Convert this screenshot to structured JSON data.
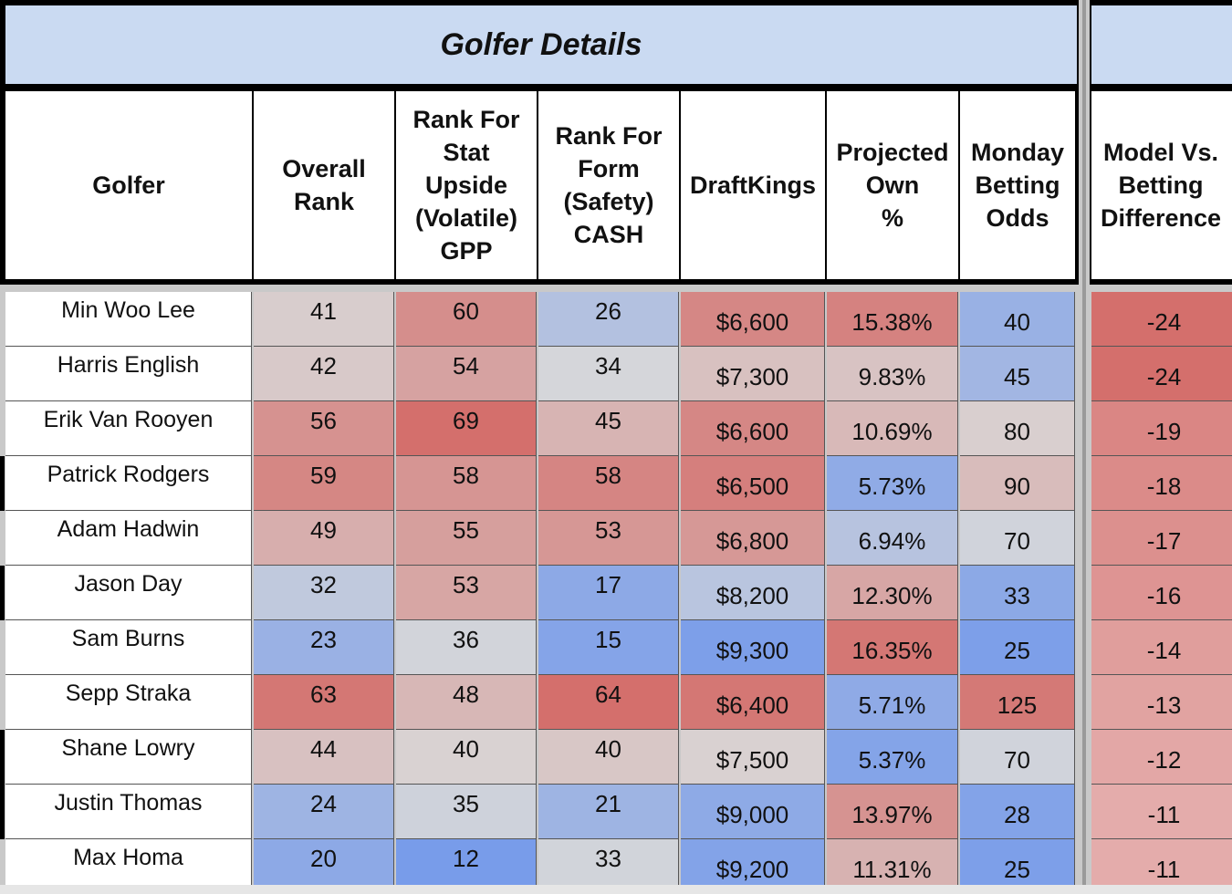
{
  "sheet": {
    "title": "Golfer Details",
    "columns": [
      "Golfer",
      "Overall\nRank",
      "Rank For\nStat\nUpside\n(Volatile)\nGPP",
      "Rank For\nForm\n(Safety)\nCASH",
      "DraftKings",
      "Projected\nOwn\n%",
      "Monday\nBetting\nOdds",
      "Model Vs.\nBetting\nDifference"
    ],
    "rows": [
      {
        "golfer": "Min Woo Lee",
        "overall": "41",
        "stat": "60",
        "form": "26",
        "dk": "$6,600",
        "own": "15.38%",
        "odds": "40",
        "diff": "-24"
      },
      {
        "golfer": "Harris English",
        "overall": "42",
        "stat": "54",
        "form": "34",
        "dk": "$7,300",
        "own": "9.83%",
        "odds": "45",
        "diff": "-24"
      },
      {
        "golfer": "Erik Van Rooyen",
        "overall": "56",
        "stat": "69",
        "form": "45",
        "dk": "$6,600",
        "own": "10.69%",
        "odds": "80",
        "diff": "-19"
      },
      {
        "golfer": "Patrick Rodgers",
        "overall": "59",
        "stat": "58",
        "form": "58",
        "dk": "$6,500",
        "own": "5.73%",
        "odds": "90",
        "diff": "-18"
      },
      {
        "golfer": "Adam Hadwin",
        "overall": "49",
        "stat": "55",
        "form": "53",
        "dk": "$6,800",
        "own": "6.94%",
        "odds": "70",
        "diff": "-17"
      },
      {
        "golfer": "Jason Day",
        "overall": "32",
        "stat": "53",
        "form": "17",
        "dk": "$8,200",
        "own": "12.30%",
        "odds": "33",
        "diff": "-16"
      },
      {
        "golfer": "Sam Burns",
        "overall": "23",
        "stat": "36",
        "form": "15",
        "dk": "$9,300",
        "own": "16.35%",
        "odds": "25",
        "diff": "-14"
      },
      {
        "golfer": "Sepp Straka",
        "overall": "63",
        "stat": "48",
        "form": "64",
        "dk": "$6,400",
        "own": "5.71%",
        "odds": "125",
        "diff": "-13"
      },
      {
        "golfer": "Shane Lowry",
        "overall": "44",
        "stat": "40",
        "form": "40",
        "dk": "$7,500",
        "own": "5.37%",
        "odds": "70",
        "diff": "-12"
      },
      {
        "golfer": "Justin Thomas",
        "overall": "24",
        "stat": "35",
        "form": "21",
        "dk": "$9,000",
        "own": "13.97%",
        "odds": "28",
        "diff": "-11"
      },
      {
        "golfer": "Max Homa",
        "overall": "20",
        "stat": "12",
        "form": "33",
        "dk": "$9,200",
        "own": "11.31%",
        "odds": "25",
        "diff": "-11"
      }
    ],
    "colors": {
      "banner": "#cadaf2",
      "high_red": "#d46f6c",
      "neutral_gray": "#d9d9d9",
      "low_blue": "#789cea"
    }
  }
}
